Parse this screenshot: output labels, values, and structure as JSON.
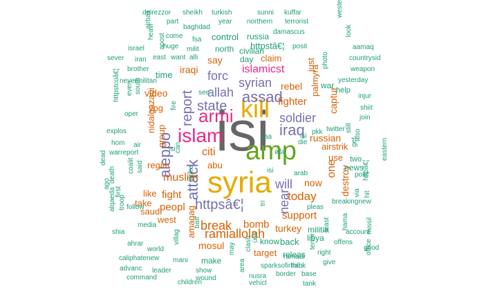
{
  "palette": {
    "green": "#1b9e77",
    "orange": "#d95f02",
    "purple": "#7570b3",
    "pink": "#e7298a",
    "lime": "#66a61e",
    "gold": "#e6ab02",
    "gray": "#666666"
  },
  "words": [
    {
      "text": "isi",
      "color": "gray"
    },
    {
      "text": "syria",
      "color": "gold"
    },
    {
      "text": "amp",
      "color": "lime"
    },
    {
      "text": "kill",
      "color": "gold"
    },
    {
      "text": "islam",
      "color": "pink"
    },
    {
      "text": "armi",
      "color": "pink"
    },
    {
      "text": "assad",
      "color": "purple"
    },
    {
      "text": "attack",
      "color": "purple"
    },
    {
      "text": "aleppo",
      "color": "purple"
    },
    {
      "text": "iraq",
      "color": "purple"
    },
    {
      "text": "report",
      "color": "purple"
    },
    {
      "text": "state",
      "color": "purple"
    },
    {
      "text": "ramiallolah",
      "color": "orange"
    },
    {
      "text": "httpsâ€¦",
      "color": "purple"
    },
    {
      "text": "soldier",
      "color": "purple"
    },
    {
      "text": "syrian",
      "color": "purple"
    },
    {
      "text": "forc",
      "color": "purple"
    },
    {
      "text": "allah",
      "color": "purple"
    },
    {
      "text": "will",
      "color": "purple"
    },
    {
      "text": "break",
      "color": "orange"
    },
    {
      "text": "today",
      "color": "orange"
    },
    {
      "text": "near",
      "color": "purple"
    },
    {
      "text": "muslim",
      "color": "orange"
    },
    {
      "text": "citi",
      "color": "orange"
    },
    {
      "text": "islamicst",
      "color": "pink"
    },
    {
      "text": "fighter",
      "color": "orange"
    },
    {
      "text": "russian",
      "color": "orange"
    },
    {
      "text": "support",
      "color": "orange"
    },
    {
      "text": "bomb",
      "color": "orange"
    },
    {
      "text": "fight",
      "color": "orange"
    },
    {
      "text": "peopl",
      "color": "orange"
    },
    {
      "text": "one",
      "color": "orange"
    },
    {
      "text": "say",
      "color": "orange"
    },
    {
      "text": "rebel",
      "color": "orange"
    },
    {
      "text": "iraqi",
      "color": "orange"
    },
    {
      "text": "video",
      "color": "orange"
    },
    {
      "text": "regim",
      "color": "orange"
    },
    {
      "text": "now",
      "color": "orange"
    },
    {
      "text": "captur",
      "color": "orange"
    },
    {
      "text": "turkey",
      "color": "orange"
    },
    {
      "text": "mosul",
      "color": "orange"
    },
    {
      "text": "group",
      "color": "orange"
    },
    {
      "text": "nidalgazaui",
      "color": "orange"
    },
    {
      "text": "abu",
      "color": "orange"
    },
    {
      "text": "ypg",
      "color": "orange"
    },
    {
      "text": "claim",
      "color": "orange"
    },
    {
      "text": "airstrik",
      "color": "orange"
    },
    {
      "text": "destroy",
      "color": "orange"
    },
    {
      "text": "palmyra",
      "color": "orange"
    },
    {
      "text": "west",
      "color": "orange"
    },
    {
      "text": "saudi",
      "color": "orange"
    },
    {
      "text": "take",
      "color": "orange"
    },
    {
      "text": "like",
      "color": "orange"
    },
    {
      "text": "target",
      "color": "orange"
    },
    {
      "text": "amaqag",
      "color": "orange"
    },
    {
      "text": "use",
      "color": "orange"
    },
    {
      "text": "just",
      "color": "orange"
    },
    {
      "text": "militia",
      "color": "green"
    },
    {
      "text": "back",
      "color": "green"
    },
    {
      "text": "news",
      "color": "green"
    },
    {
      "text": "control",
      "color": "green"
    },
    {
      "text": "russia",
      "color": "green"
    },
    {
      "text": "httpstâ€¦",
      "color": "green"
    },
    {
      "text": "civilian",
      "color": "green"
    },
    {
      "text": "north",
      "color": "green"
    },
    {
      "text": "day",
      "color": "green"
    },
    {
      "text": "time",
      "color": "green"
    },
    {
      "text": "war",
      "color": "green"
    },
    {
      "text": "help",
      "color": "green"
    },
    {
      "text": "make",
      "color": "green"
    },
    {
      "text": "know",
      "color": "green"
    },
    {
      "text": "releas",
      "color": "green"
    },
    {
      "text": "libya",
      "color": "green"
    },
    {
      "text": "two",
      "color": "green"
    },
    {
      "text": "isi",
      "color": "green"
    },
    {
      "text": "isi",
      "color": "green"
    },
    {
      "text": "isi",
      "color": "green"
    }
  ],
  "small_words": [
    "deirezzor",
    "sheikh",
    "turkish",
    "sunni",
    "kuffar",
    "western",
    "airbas",
    "part",
    "year",
    "northern",
    "terrorist",
    "look",
    "heavi",
    "baghdad",
    "damascus",
    "come",
    "fsa",
    "apost",
    "israel",
    "iran",
    "huge",
    "milit",
    "posit",
    "aamaq",
    "sever",
    "east",
    "want",
    "alli",
    "photo",
    "countrysid",
    "brother",
    "oper",
    "nevermilitari",
    "even",
    "south",
    "yesterday",
    "weapon",
    "httpstcoâ€¦",
    "see",
    "fire",
    "injur",
    "shiit",
    "join",
    "pkk",
    "twitter",
    "still",
    "also",
    "explos",
    "hom",
    "warreport",
    "air",
    "die",
    "saa",
    "get",
    "eastern",
    "can",
    "dead",
    "death",
    "coalit",
    "said",
    "strike",
    "arab",
    "polic",
    "httpâ€¦",
    "ago",
    "first",
    "pleas",
    "via",
    "hit",
    "breakingnew",
    "hama",
    "alqaeda",
    "troop",
    "follow",
    "media",
    "least",
    "account",
    "missil",
    "shia",
    "batt",
    "offens",
    "good",
    "ahrar",
    "world",
    "villag",
    "may",
    "clash",
    "right",
    "give",
    "office",
    "caliphatenew",
    "mani",
    "ramadi",
    "think",
    "terror",
    "advanc",
    "command",
    "leader",
    "show",
    "sparksofirhabi",
    "base",
    "children",
    "wound",
    "nusra",
    "border",
    "vehicl",
    "tank",
    "area",
    "tri",
    "ùùš",
    "øšù"
  ]
}
